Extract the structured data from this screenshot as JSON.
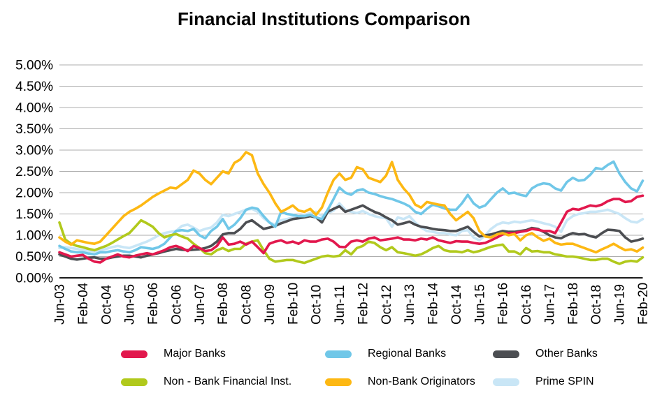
{
  "title": "Financial Institutions Comparison",
  "chart_data": {
    "type": "line",
    "title": "Financial Institutions Comparison",
    "xlabel": "",
    "ylabel": "",
    "ylim": [
      0,
      5
    ],
    "grid": true,
    "legend_position": "bottom",
    "y_tick_labels": [
      "5.00%",
      "4.50%",
      "4.00%",
      "3.50%",
      "3.00%",
      "2.50%",
      "2.00%",
      "1.50%",
      "1.00%",
      "0.50%",
      "0.00%"
    ],
    "x_tick_labels": [
      "Jun-03",
      "Feb-04",
      "Oct-04",
      "Jun-05",
      "Feb-06",
      "Oct-06",
      "Jun-07",
      "Feb-08",
      "Oct-08",
      "Jun-09",
      "Feb-10",
      "Oct-10",
      "Jun-11",
      "Feb-12",
      "Oct-12",
      "Jun-13",
      "Feb-14",
      "Oct-14",
      "Jun-15",
      "Feb-16",
      "Oct-16",
      "Jun-17",
      "Feb-18",
      "Oct-18",
      "Jun-19",
      "Feb-20"
    ],
    "x_start": "Jun-03",
    "x_end": "Feb-20",
    "months_per_point": 2,
    "values_unit": "percent",
    "axis_color": "#1a1a1a",
    "gridline_color": "#adadad",
    "series": [
      {
        "name": "Major Banks",
        "color": "#E2184D",
        "values": [
          0.6,
          0.55,
          0.5,
          0.52,
          0.54,
          0.45,
          0.38,
          0.36,
          0.45,
          0.5,
          0.55,
          0.5,
          0.48,
          0.52,
          0.55,
          0.58,
          0.55,
          0.6,
          0.65,
          0.72,
          0.75,
          0.7,
          0.63,
          0.75,
          0.7,
          0.63,
          0.65,
          0.75,
          0.95,
          0.78,
          0.8,
          0.85,
          0.78,
          0.85,
          0.72,
          0.58,
          0.8,
          0.85,
          0.88,
          0.82,
          0.85,
          0.8,
          0.88,
          0.85,
          0.85,
          0.9,
          0.92,
          0.85,
          0.73,
          0.72,
          0.85,
          0.88,
          0.85,
          0.92,
          0.95,
          0.88,
          0.9,
          0.92,
          0.95,
          0.9,
          0.9,
          0.88,
          0.92,
          0.9,
          0.95,
          0.88,
          0.85,
          0.82,
          0.86,
          0.85,
          0.85,
          0.82,
          0.8,
          0.82,
          0.88,
          0.95,
          1.02,
          1.05,
          1.05,
          1.08,
          1.1,
          1.15,
          1.13,
          1.1,
          1.1,
          1.05,
          1.3,
          1.55,
          1.62,
          1.6,
          1.65,
          1.7,
          1.68,
          1.72,
          1.8,
          1.85,
          1.85,
          1.78,
          1.8,
          1.9,
          1.93
        ]
      },
      {
        "name": "Regional Banks",
        "color": "#70C7E8",
        "values": [
          0.75,
          0.68,
          0.62,
          0.6,
          0.6,
          0.57,
          0.55,
          0.6,
          0.6,
          0.63,
          0.65,
          0.62,
          0.6,
          0.65,
          0.72,
          0.7,
          0.68,
          0.72,
          0.8,
          0.95,
          1.1,
          1.12,
          1.1,
          1.15,
          1.0,
          0.93,
          1.1,
          1.2,
          1.38,
          1.15,
          1.25,
          1.4,
          1.6,
          1.65,
          1.62,
          1.45,
          1.3,
          1.2,
          1.55,
          1.5,
          1.48,
          1.45,
          1.45,
          1.48,
          1.42,
          1.38,
          1.6,
          1.85,
          2.12,
          2.0,
          1.95,
          2.05,
          2.08,
          2.0,
          1.97,
          1.92,
          1.88,
          1.85,
          1.8,
          1.75,
          1.68,
          1.55,
          1.5,
          1.62,
          1.72,
          1.68,
          1.63,
          1.6,
          1.6,
          1.75,
          1.95,
          1.75,
          1.65,
          1.7,
          1.85,
          2.0,
          2.1,
          1.98,
          2.0,
          1.95,
          1.92,
          2.1,
          2.18,
          2.22,
          2.2,
          2.1,
          2.05,
          2.25,
          2.35,
          2.28,
          2.3,
          2.42,
          2.58,
          2.55,
          2.65,
          2.73,
          2.45,
          2.25,
          2.1,
          2.03,
          2.28
        ]
      },
      {
        "name": "Other Banks",
        "color": "#4C4E52",
        "values": [
          0.55,
          0.5,
          0.45,
          0.43,
          0.45,
          0.47,
          0.48,
          0.45,
          0.45,
          0.48,
          0.5,
          0.52,
          0.52,
          0.5,
          0.48,
          0.52,
          0.55,
          0.58,
          0.62,
          0.65,
          0.68,
          0.66,
          0.65,
          0.66,
          0.67,
          0.7,
          0.75,
          0.85,
          1.02,
          1.05,
          1.05,
          1.15,
          1.3,
          1.35,
          1.25,
          1.15,
          1.18,
          1.22,
          1.28,
          1.33,
          1.38,
          1.4,
          1.42,
          1.45,
          1.42,
          1.3,
          1.55,
          1.62,
          1.68,
          1.55,
          1.6,
          1.65,
          1.7,
          1.62,
          1.55,
          1.5,
          1.42,
          1.35,
          1.25,
          1.28,
          1.32,
          1.25,
          1.2,
          1.18,
          1.15,
          1.13,
          1.12,
          1.1,
          1.1,
          1.15,
          1.2,
          1.08,
          0.97,
          1.0,
          1.02,
          1.06,
          1.1,
          1.08,
          1.08,
          1.1,
          1.12,
          1.17,
          1.15,
          1.08,
          1.0,
          0.95,
          0.93,
          1.0,
          1.05,
          1.02,
          1.03,
          0.98,
          0.95,
          1.05,
          1.13,
          1.12,
          1.1,
          0.95,
          0.85,
          0.88,
          0.92
        ]
      },
      {
        "name": "Non - Bank Financial Inst.",
        "color": "#B1C91C",
        "values": [
          1.3,
          0.9,
          0.8,
          0.75,
          0.72,
          0.68,
          0.65,
          0.7,
          0.75,
          0.82,
          0.9,
          0.98,
          1.05,
          1.2,
          1.35,
          1.28,
          1.2,
          1.05,
          0.95,
          1.0,
          1.03,
          0.97,
          0.92,
          0.8,
          0.7,
          0.58,
          0.55,
          0.65,
          0.7,
          0.63,
          0.68,
          0.68,
          0.8,
          0.85,
          0.88,
          0.65,
          0.45,
          0.38,
          0.4,
          0.42,
          0.42,
          0.38,
          0.35,
          0.4,
          0.45,
          0.5,
          0.52,
          0.5,
          0.52,
          0.65,
          0.55,
          0.7,
          0.75,
          0.85,
          0.82,
          0.72,
          0.65,
          0.72,
          0.6,
          0.58,
          0.55,
          0.52,
          0.55,
          0.62,
          0.7,
          0.75,
          0.65,
          0.62,
          0.62,
          0.6,
          0.65,
          0.6,
          0.63,
          0.68,
          0.73,
          0.76,
          0.78,
          0.62,
          0.62,
          0.55,
          0.7,
          0.62,
          0.63,
          0.6,
          0.6,
          0.55,
          0.53,
          0.5,
          0.5,
          0.48,
          0.45,
          0.42,
          0.42,
          0.45,
          0.45,
          0.38,
          0.33,
          0.38,
          0.4,
          0.38,
          0.48
        ]
      },
      {
        "name": "Non-Bank Originators",
        "color": "#FDB813",
        "values": [
          0.95,
          0.85,
          0.78,
          0.88,
          0.85,
          0.82,
          0.8,
          0.85,
          1.0,
          1.15,
          1.3,
          1.45,
          1.55,
          1.62,
          1.7,
          1.8,
          1.9,
          1.98,
          2.05,
          2.12,
          2.1,
          2.2,
          2.3,
          2.52,
          2.45,
          2.3,
          2.2,
          2.35,
          2.5,
          2.45,
          2.7,
          2.78,
          2.95,
          2.88,
          2.45,
          2.2,
          2.0,
          1.75,
          1.55,
          1.62,
          1.7,
          1.58,
          1.55,
          1.62,
          1.48,
          1.65,
          2.0,
          2.3,
          2.45,
          2.3,
          2.35,
          2.6,
          2.55,
          2.35,
          2.3,
          2.25,
          2.4,
          2.72,
          2.3,
          2.1,
          1.95,
          1.72,
          1.65,
          1.78,
          1.75,
          1.72,
          1.7,
          1.5,
          1.35,
          1.45,
          1.55,
          1.4,
          1.1,
          0.97,
          0.95,
          1.02,
          1.05,
          1.0,
          1.03,
          0.88,
          1.0,
          1.05,
          0.95,
          0.87,
          0.92,
          0.82,
          0.78,
          0.8,
          0.8,
          0.75,
          0.7,
          0.65,
          0.6,
          0.67,
          0.73,
          0.8,
          0.72,
          0.65,
          0.67,
          0.62,
          0.71
        ]
      },
      {
        "name": "Prime SPIN",
        "color": "#C9E6F6",
        "values": [
          0.7,
          0.72,
          0.7,
          0.68,
          0.65,
          0.63,
          0.62,
          0.65,
          0.68,
          0.72,
          0.75,
          0.72,
          0.7,
          0.75,
          0.8,
          0.85,
          0.92,
          1.0,
          1.05,
          1.08,
          1.1,
          1.22,
          1.25,
          1.18,
          1.1,
          1.15,
          1.18,
          1.3,
          1.48,
          1.45,
          1.5,
          1.55,
          1.6,
          1.62,
          1.55,
          1.4,
          1.3,
          1.25,
          1.35,
          1.38,
          1.42,
          1.45,
          1.48,
          1.52,
          1.55,
          1.45,
          1.52,
          1.58,
          1.75,
          1.6,
          1.55,
          1.52,
          1.57,
          1.5,
          1.45,
          1.42,
          1.4,
          1.2,
          1.42,
          1.38,
          1.45,
          1.3,
          1.18,
          1.1,
          1.08,
          1.05,
          1.05,
          1.02,
          1.0,
          1.1,
          1.12,
          0.95,
          0.88,
          1.0,
          1.15,
          1.25,
          1.3,
          1.28,
          1.32,
          1.3,
          1.33,
          1.35,
          1.32,
          1.28,
          1.25,
          1.2,
          1.08,
          1.35,
          1.45,
          1.5,
          1.52,
          1.55,
          1.55,
          1.57,
          1.6,
          1.55,
          1.5,
          1.4,
          1.32,
          1.3,
          1.38
        ]
      }
    ]
  }
}
